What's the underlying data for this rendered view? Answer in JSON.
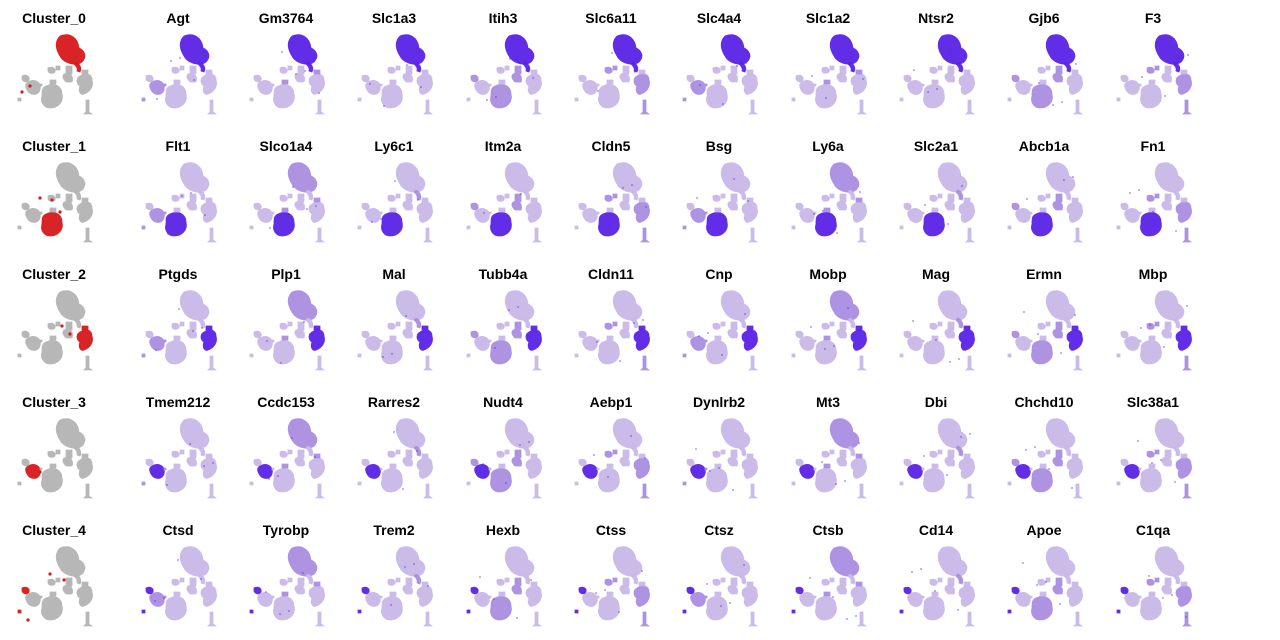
{
  "chart_data": {
    "type": "scatter",
    "description_kind": "grid of embedding feature plots",
    "colors": {
      "cluster_highlight": "#d7191c",
      "cluster_background": "#b4b4b4",
      "expression_low": "#c9b8e8",
      "expression_high": "#5a22e6"
    },
    "rows": [
      {
        "cluster": "Cluster_0",
        "genes": [
          "Agt",
          "Gm3764",
          "Slc1a3",
          "Itih3",
          "Slc6a11",
          "Slc4a4",
          "Slc1a2",
          "Ntsr2",
          "Gjb6",
          "F3"
        ]
      },
      {
        "cluster": "Cluster_1",
        "genes": [
          "Flt1",
          "Slco1a4",
          "Ly6c1",
          "Itm2a",
          "Cldn5",
          "Bsg",
          "Ly6a",
          "Slc2a1",
          "Abcb1a",
          "Fn1"
        ]
      },
      {
        "cluster": "Cluster_2",
        "genes": [
          "Ptgds",
          "Plp1",
          "Mal",
          "Tubb4a",
          "Cldn11",
          "Cnp",
          "Mobp",
          "Mag",
          "Ermn",
          "Mbp"
        ]
      },
      {
        "cluster": "Cluster_3",
        "genes": [
          "Tmem212",
          "Ccdc153",
          "Rarres2",
          "Nudt4",
          "Aebp1",
          "Dynlrb2",
          "Mt3",
          "Dbi",
          "Chchd10",
          "Slc38a1"
        ]
      },
      {
        "cluster": "Cluster_4",
        "genes": [
          "Ctsd",
          "Tyrobp",
          "Trem2",
          "Hexb",
          "Ctss",
          "Ctsz",
          "Ctsb",
          "Cd14",
          "Apoe",
          "C1qa"
        ]
      }
    ]
  }
}
